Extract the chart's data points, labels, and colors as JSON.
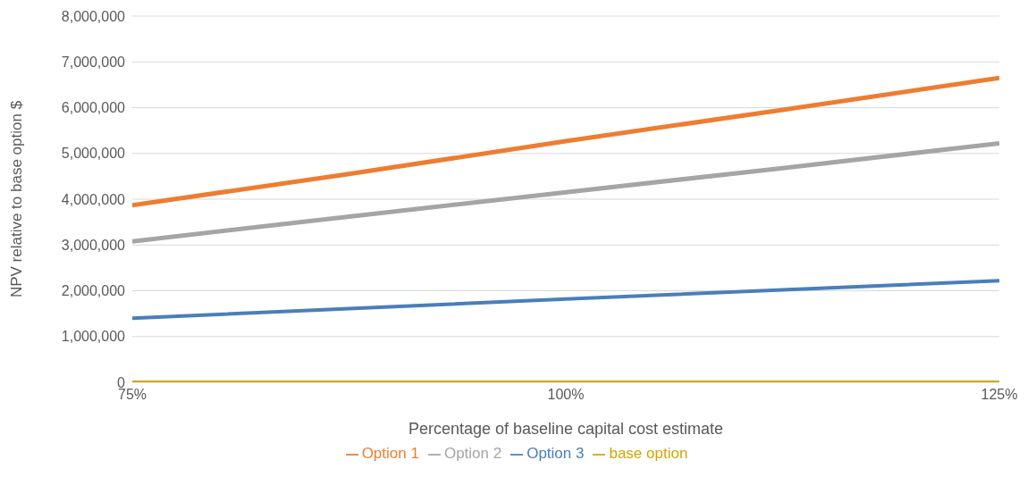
{
  "chart_data": {
    "type": "line",
    "xlabel": "Percentage of baseline capital cost estimate",
    "ylabel": "NPV relative to base option $",
    "x": [
      75,
      87.5,
      100,
      112.5,
      125
    ],
    "xlim": [
      75,
      125
    ],
    "xticks": [
      {
        "value": 75,
        "label": "75%"
      },
      {
        "value": 100,
        "label": "100%"
      },
      {
        "value": 125,
        "label": "125%"
      }
    ],
    "ylim": [
      0,
      8000000
    ],
    "yticks": [
      {
        "value": 0,
        "label": "0"
      },
      {
        "value": 1000000,
        "label": "1,000,000"
      },
      {
        "value": 2000000,
        "label": "2,000,000"
      },
      {
        "value": 3000000,
        "label": "3,000,000"
      },
      {
        "value": 4000000,
        "label": "4,000,000"
      },
      {
        "value": 5000000,
        "label": "5,000,000"
      },
      {
        "value": 6000000,
        "label": "6,000,000"
      },
      {
        "value": 7000000,
        "label": "7,000,000"
      },
      {
        "value": 8000000,
        "label": "8,000,000"
      }
    ],
    "series": [
      {
        "name": "Option 1",
        "color": "#ed7d31",
        "values": [
          3870000,
          4550000,
          5270000,
          5950000,
          6650000
        ]
      },
      {
        "name": "Option 2",
        "color": "#a5a5a5",
        "values": [
          3080000,
          3620000,
          4150000,
          4680000,
          5220000
        ]
      },
      {
        "name": "Option 3",
        "color": "#4a7ebb",
        "values": [
          1400000,
          1610000,
          1820000,
          2020000,
          2220000
        ]
      },
      {
        "name": "base option",
        "color": "#d4a500",
        "values": [
          0,
          0,
          0,
          0,
          0
        ]
      }
    ],
    "grid": "y",
    "legend": "bottom",
    "marker": "none",
    "line_style": "solid"
  }
}
